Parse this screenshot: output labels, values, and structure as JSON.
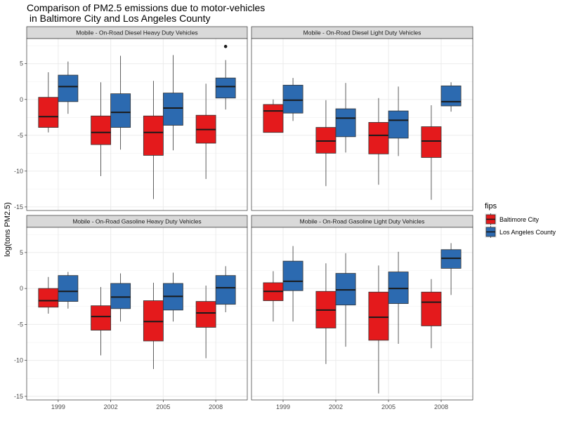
{
  "chart_data": {
    "type": "boxplot",
    "title": [
      "Comparison of PM2.5 emissions due to motor-vehicles",
      " in Baltimore City and Los Angeles County"
    ],
    "ylabel": "log(tons PM2.5)",
    "xlabel": "",
    "categories": [
      "1999",
      "2002",
      "2005",
      "2008"
    ],
    "ylim": [
      -15.5,
      8.5
    ],
    "yticks": [
      -15,
      -10,
      -5,
      0,
      5
    ],
    "grid": true,
    "legend": {
      "title": "fips",
      "position": "right",
      "items": [
        {
          "label": "Baltimore City",
          "color": "#e41a1c"
        },
        {
          "label": "Los Angeles County",
          "color": "#2c6ab0"
        }
      ]
    },
    "panels": [
      {
        "strip": "Mobile - On-Road Diesel Heavy Duty Vehicles",
        "boxes": [
          {
            "x": "1999",
            "group": "Baltimore City",
            "min": -4.6,
            "q1": -3.9,
            "median": -2.4,
            "q3": 0.3,
            "max": 3.8
          },
          {
            "x": "1999",
            "group": "Los Angeles County",
            "min": -2.0,
            "q1": -0.3,
            "median": 1.8,
            "q3": 3.4,
            "max": 5.3
          },
          {
            "x": "2002",
            "group": "Baltimore City",
            "min": -10.7,
            "q1": -6.3,
            "median": -4.6,
            "q3": -2.3,
            "max": 2.4
          },
          {
            "x": "2002",
            "group": "Los Angeles County",
            "min": -7.0,
            "q1": -3.9,
            "median": -1.8,
            "q3": 0.8,
            "max": 6.1
          },
          {
            "x": "2005",
            "group": "Baltimore City",
            "min": -13.9,
            "q1": -7.8,
            "median": -4.6,
            "q3": -2.3,
            "max": 2.6
          },
          {
            "x": "2005",
            "group": "Los Angeles County",
            "min": -7.1,
            "q1": -3.6,
            "median": -1.2,
            "q3": 0.9,
            "max": 6.2
          },
          {
            "x": "2008",
            "group": "Baltimore City",
            "min": -11.1,
            "q1": -6.1,
            "median": -4.2,
            "q3": -2.2,
            "max": 2.2
          },
          {
            "x": "2008",
            "group": "Los Angeles County",
            "min": -1.4,
            "q1": 0.2,
            "median": 1.8,
            "q3": 3.0,
            "max": 5.5,
            "outliers": [
              7.4
            ]
          }
        ]
      },
      {
        "strip": "Mobile - On-Road Diesel Light Duty Vehicles",
        "boxes": [
          {
            "x": "1999",
            "group": "Baltimore City",
            "min": -4.6,
            "q1": -4.6,
            "median": -1.6,
            "q3": -0.7,
            "max": 0.0
          },
          {
            "x": "1999",
            "group": "Los Angeles County",
            "min": -3.0,
            "q1": -1.9,
            "median": -0.1,
            "q3": 2.0,
            "max": 3.0
          },
          {
            "x": "2002",
            "group": "Baltimore City",
            "min": -12.1,
            "q1": -7.5,
            "median": -5.8,
            "q3": -3.9,
            "max": -0.1
          },
          {
            "x": "2002",
            "group": "Los Angeles County",
            "min": -7.4,
            "q1": -5.2,
            "median": -2.6,
            "q3": -1.3,
            "max": 2.3
          },
          {
            "x": "2005",
            "group": "Baltimore City",
            "min": -11.9,
            "q1": -7.6,
            "median": -5.0,
            "q3": -3.2,
            "max": 0.2
          },
          {
            "x": "2005",
            "group": "Los Angeles County",
            "min": -7.9,
            "q1": -5.4,
            "median": -2.9,
            "q3": -1.6,
            "max": 1.8
          },
          {
            "x": "2008",
            "group": "Baltimore City",
            "min": -14.0,
            "q1": -8.1,
            "median": -5.8,
            "q3": -3.8,
            "max": -0.8
          },
          {
            "x": "2008",
            "group": "Los Angeles County",
            "min": -1.7,
            "q1": -0.9,
            "median": -0.3,
            "q3": 1.9,
            "max": 2.4
          }
        ]
      },
      {
        "strip": "Mobile - On-Road Gasoline Heavy Duty Vehicles",
        "boxes": [
          {
            "x": "1999",
            "group": "Baltimore City",
            "min": -3.5,
            "q1": -2.6,
            "median": -1.7,
            "q3": 0.0,
            "max": 1.6
          },
          {
            "x": "1999",
            "group": "Los Angeles County",
            "min": -2.8,
            "q1": -1.8,
            "median": -0.4,
            "q3": 1.8,
            "max": 2.3
          },
          {
            "x": "2002",
            "group": "Baltimore City",
            "min": -9.3,
            "q1": -5.8,
            "median": -3.9,
            "q3": -2.4,
            "max": 0.2
          },
          {
            "x": "2002",
            "group": "Los Angeles County",
            "min": -4.6,
            "q1": -2.8,
            "median": -1.2,
            "q3": 0.7,
            "max": 2.1
          },
          {
            "x": "2005",
            "group": "Baltimore City",
            "min": -11.2,
            "q1": -7.3,
            "median": -4.6,
            "q3": -1.7,
            "max": 0.8
          },
          {
            "x": "2005",
            "group": "Los Angeles County",
            "min": -4.6,
            "q1": -3.0,
            "median": -1.1,
            "q3": 0.7,
            "max": 2.2
          },
          {
            "x": "2008",
            "group": "Baltimore City",
            "min": -9.7,
            "q1": -5.4,
            "median": -3.4,
            "q3": -1.8,
            "max": 0.4
          },
          {
            "x": "2008",
            "group": "Los Angeles County",
            "min": -3.3,
            "q1": -2.2,
            "median": 0.1,
            "q3": 1.8,
            "max": 3.1
          }
        ]
      },
      {
        "strip": "Mobile - On-Road Gasoline Light Duty Vehicles",
        "boxes": [
          {
            "x": "1999",
            "group": "Baltimore City",
            "min": -4.6,
            "q1": -1.7,
            "median": -0.4,
            "q3": 0.8,
            "max": 2.4
          },
          {
            "x": "1999",
            "group": "Los Angeles County",
            "min": -4.6,
            "q1": -0.3,
            "median": 1.0,
            "q3": 3.8,
            "max": 5.9
          },
          {
            "x": "2002",
            "group": "Baltimore City",
            "min": -10.5,
            "q1": -5.5,
            "median": -3.0,
            "q3": -0.4,
            "max": 3.5
          },
          {
            "x": "2002",
            "group": "Los Angeles County",
            "min": -8.1,
            "q1": -2.3,
            "median": -0.2,
            "q3": 2.1,
            "max": 4.9
          },
          {
            "x": "2005",
            "group": "Baltimore City",
            "min": -14.6,
            "q1": -7.2,
            "median": -4.0,
            "q3": -0.5,
            "max": 3.2
          },
          {
            "x": "2005",
            "group": "Los Angeles County",
            "min": -7.7,
            "q1": -2.1,
            "median": 0.0,
            "q3": 2.3,
            "max": 5.1
          },
          {
            "x": "2008",
            "group": "Baltimore City",
            "min": -8.3,
            "q1": -5.2,
            "median": -1.9,
            "q3": -0.5,
            "max": 1.3
          },
          {
            "x": "2008",
            "group": "Los Angeles County",
            "min": -0.9,
            "q1": 2.8,
            "median": 4.2,
            "q3": 5.4,
            "max": 6.3
          }
        ]
      }
    ]
  }
}
